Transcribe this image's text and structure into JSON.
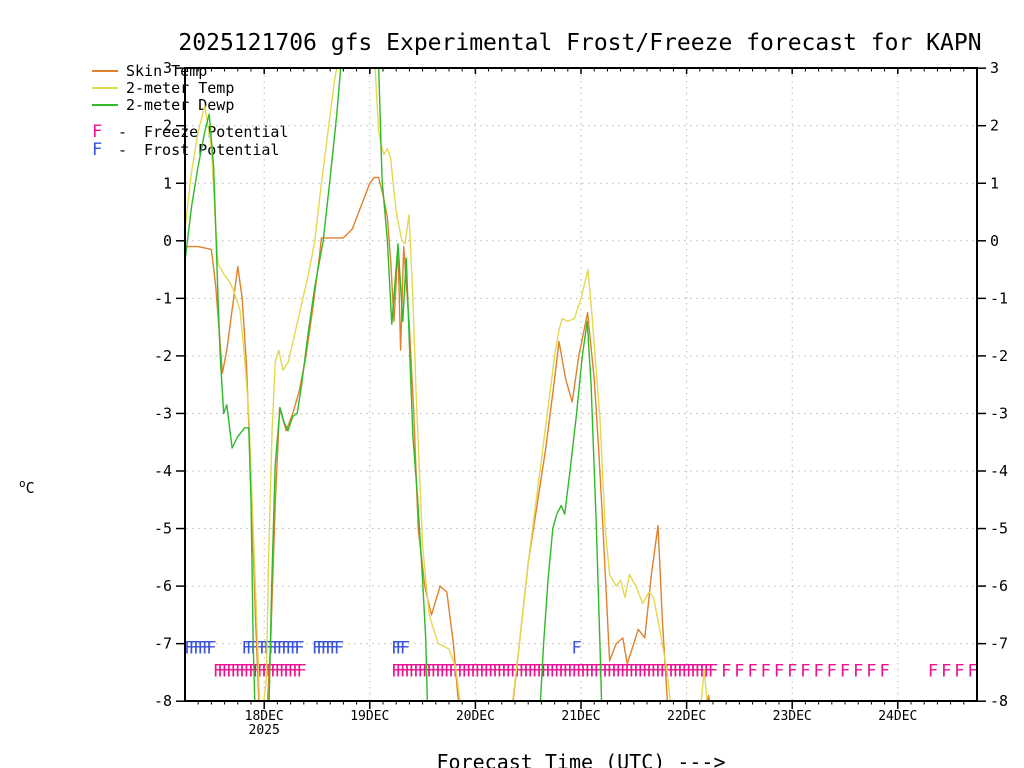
{
  "title": "2025121706 gfs Experimental Frost/Freeze forecast for KAPN",
  "axes": {
    "y": {
      "unit_sup": "o",
      "unit_main": "C"
    },
    "x": {
      "label": "Forecast Time (UTC) --->"
    }
  },
  "chart_data": {
    "type": "line",
    "title": "2025121706 gfs Experimental Frost/Freeze forecast for KAPN",
    "xlabel": "Forecast Time (UTC) --->",
    "ylabel": "°C",
    "grid": "dotted",
    "y_axis": {
      "min": -8,
      "max": 3,
      "ticks": [
        3,
        2,
        1,
        0,
        -1,
        -2,
        -3,
        -4,
        -5,
        -6,
        -7,
        -8
      ]
    },
    "x_axis": {
      "span_hours": 180,
      "minor_tick_hours": 3,
      "year_label": "2025",
      "day_ticks": [
        {
          "hour": 18,
          "label": "18DEC"
        },
        {
          "hour": 42,
          "label": "19DEC"
        },
        {
          "hour": 66,
          "label": "20DEC"
        },
        {
          "hour": 90,
          "label": "21DEC"
        },
        {
          "hour": 114,
          "label": "22DEC"
        },
        {
          "hour": 138,
          "label": "23DEC"
        },
        {
          "hour": 162,
          "label": "24DEC"
        }
      ]
    },
    "series": [
      {
        "name": "Skin Temp",
        "color": "#e0812c",
        "points": [
          [
            0,
            -0.1
          ],
          [
            3,
            -0.1
          ],
          [
            6,
            -0.15
          ],
          [
            7,
            -0.8
          ],
          [
            8.5,
            -2.3
          ],
          [
            9.5,
            -1.9
          ],
          [
            12,
            -0.45
          ],
          [
            13,
            -1.0
          ],
          [
            14,
            -2.2
          ],
          [
            15,
            -4.2
          ],
          [
            16,
            -6.5
          ],
          [
            17,
            -8.4
          ],
          [
            18.5,
            -8.4
          ],
          [
            19.5,
            -6.9
          ],
          [
            20.5,
            -4.6
          ],
          [
            21.5,
            -2.9
          ],
          [
            23,
            -3.3
          ],
          [
            24.5,
            -3.0
          ],
          [
            26,
            -2.6
          ],
          [
            27.5,
            -2.0
          ],
          [
            29,
            -1.2
          ],
          [
            30.5,
            -0.3
          ],
          [
            31,
            0.05
          ],
          [
            36,
            0.05
          ],
          [
            38,
            0.2
          ],
          [
            40,
            0.6
          ],
          [
            42,
            1.0
          ],
          [
            43,
            1.1
          ],
          [
            44,
            1.1
          ],
          [
            45,
            0.8
          ],
          [
            46,
            0.4
          ],
          [
            46.8,
            -0.4
          ],
          [
            47.5,
            -1.4
          ],
          [
            48.4,
            -0.1
          ],
          [
            49,
            -1.9
          ],
          [
            49.7,
            -0.1
          ],
          [
            51,
            -1.5
          ],
          [
            52,
            -3.0
          ],
          [
            53,
            -5.0
          ],
          [
            54.5,
            -6.0
          ],
          [
            56,
            -6.5
          ],
          [
            58,
            -6.0
          ],
          [
            59.5,
            -6.1
          ],
          [
            61,
            -7.0
          ],
          [
            62,
            -7.9
          ],
          [
            63,
            -8.4
          ],
          [
            74,
            -8.4
          ],
          [
            76,
            -7.0
          ],
          [
            78,
            -5.6
          ],
          [
            80,
            -4.6
          ],
          [
            82,
            -3.6
          ],
          [
            84,
            -2.4
          ],
          [
            85,
            -1.75
          ],
          [
            86.5,
            -2.4
          ],
          [
            88,
            -2.8
          ],
          [
            89.5,
            -2.0
          ],
          [
            91.5,
            -1.25
          ],
          [
            93,
            -2.4
          ],
          [
            94,
            -3.6
          ],
          [
            95,
            -5.0
          ],
          [
            96.5,
            -7.3
          ],
          [
            98,
            -7.0
          ],
          [
            99.5,
            -6.9
          ],
          [
            100.5,
            -7.35
          ],
          [
            102,
            -7.0
          ],
          [
            103,
            -6.75
          ],
          [
            104.5,
            -6.9
          ],
          [
            106,
            -5.8
          ],
          [
            107.5,
            -4.95
          ],
          [
            108.5,
            -6.6
          ],
          [
            109.5,
            -7.85
          ],
          [
            110,
            -8.4
          ],
          [
            118,
            -8.4
          ],
          [
            119,
            -7.9
          ],
          [
            120,
            -8.4
          ],
          [
            180,
            -8.4
          ]
        ]
      },
      {
        "name": "2-meter Temp",
        "color": "#e3d94e",
        "points": [
          [
            0,
            0.2
          ],
          [
            1.5,
            1.2
          ],
          [
            3,
            1.9
          ],
          [
            4.5,
            2.35
          ],
          [
            6,
            1.6
          ],
          [
            7,
            0.2
          ],
          [
            7.5,
            -0.4
          ],
          [
            9,
            -0.6
          ],
          [
            10,
            -0.7
          ],
          [
            11,
            -0.85
          ],
          [
            12.5,
            -1.2
          ],
          [
            13.5,
            -2.0
          ],
          [
            14.5,
            -3.0
          ],
          [
            15.5,
            -5.0
          ],
          [
            16.5,
            -7.0
          ],
          [
            17,
            -8.1
          ],
          [
            17.5,
            -8.3
          ],
          [
            18.5,
            -7.6
          ],
          [
            19,
            -5.5
          ],
          [
            19.8,
            -3.3
          ],
          [
            20.5,
            -2.1
          ],
          [
            21.3,
            -1.9
          ],
          [
            22.3,
            -2.25
          ],
          [
            23.5,
            -2.1
          ],
          [
            25,
            -1.6
          ],
          [
            26.5,
            -1.1
          ],
          [
            28,
            -0.6
          ],
          [
            29.5,
            0.0
          ],
          [
            31,
            1.0
          ],
          [
            32.5,
            1.9
          ],
          [
            34,
            2.8
          ],
          [
            35.2,
            3.3
          ],
          [
            43,
            3.3
          ],
          [
            44,
            1.9
          ],
          [
            44.5,
            1.7
          ],
          [
            45.2,
            1.5
          ],
          [
            46,
            1.6
          ],
          [
            46.7,
            1.45
          ],
          [
            48,
            0.5
          ],
          [
            49.3,
            0.0
          ],
          [
            50,
            -0.05
          ],
          [
            50.9,
            0.45
          ],
          [
            51.8,
            -1.0
          ],
          [
            52.5,
            -2.6
          ],
          [
            54,
            -5.3
          ],
          [
            55.5,
            -6.5
          ],
          [
            56.5,
            -6.75
          ],
          [
            57.5,
            -7.0
          ],
          [
            59,
            -7.05
          ],
          [
            60,
            -7.1
          ],
          [
            61.5,
            -7.4
          ],
          [
            62,
            -7.7
          ],
          [
            63,
            -8.3
          ],
          [
            74,
            -8.3
          ],
          [
            76,
            -7.0
          ],
          [
            78,
            -5.6
          ],
          [
            80,
            -4.4
          ],
          [
            82,
            -3.2
          ],
          [
            84,
            -2.0
          ],
          [
            85,
            -1.55
          ],
          [
            85.7,
            -1.35
          ],
          [
            87,
            -1.4
          ],
          [
            88.5,
            -1.35
          ],
          [
            90,
            -1.0
          ],
          [
            91.6,
            -0.5
          ],
          [
            92.5,
            -1.3
          ],
          [
            93.5,
            -2.3
          ],
          [
            94.3,
            -3.05
          ],
          [
            95.5,
            -5.0
          ],
          [
            96.5,
            -5.8
          ],
          [
            98,
            -6.0
          ],
          [
            99,
            -5.9
          ],
          [
            100,
            -6.2
          ],
          [
            101,
            -5.8
          ],
          [
            102.5,
            -6.0
          ],
          [
            104,
            -6.3
          ],
          [
            105.5,
            -6.1
          ],
          [
            106.5,
            -6.2
          ],
          [
            108,
            -6.8
          ],
          [
            109.5,
            -7.45
          ],
          [
            110.7,
            -8.3
          ],
          [
            117,
            -8.3
          ],
          [
            118,
            -7.45
          ],
          [
            119,
            -8.3
          ],
          [
            180,
            -8.3
          ]
        ]
      },
      {
        "name": "2-meter Dewp",
        "color": "#2fba28",
        "points": [
          [
            0,
            -0.35
          ],
          [
            1.5,
            0.6
          ],
          [
            3,
            1.3
          ],
          [
            4.5,
            1.9
          ],
          [
            5.5,
            2.2
          ],
          [
            6.5,
            1.3
          ],
          [
            7,
            0.2
          ],
          [
            7.5,
            -1.0
          ],
          [
            8,
            -2.0
          ],
          [
            8.8,
            -3.0
          ],
          [
            9.5,
            -2.85
          ],
          [
            10.7,
            -3.6
          ],
          [
            12,
            -3.4
          ],
          [
            13.6,
            -3.25
          ],
          [
            14.5,
            -3.25
          ],
          [
            15,
            -4.5
          ],
          [
            15.5,
            -7.0
          ],
          [
            16,
            -8.4
          ],
          [
            19,
            -8.4
          ],
          [
            19.7,
            -6.0
          ],
          [
            20.5,
            -3.9
          ],
          [
            21.6,
            -2.9
          ],
          [
            22.5,
            -3.15
          ],
          [
            23.4,
            -3.3
          ],
          [
            24.5,
            -3.05
          ],
          [
            25.5,
            -3.0
          ],
          [
            26.5,
            -2.5
          ],
          [
            28,
            -1.6
          ],
          [
            29.5,
            -0.8
          ],
          [
            31.4,
            0.0
          ],
          [
            33,
            1.1
          ],
          [
            34.5,
            2.2
          ],
          [
            35.7,
            3.3
          ],
          [
            43.9,
            3.3
          ],
          [
            44.8,
            1.05
          ],
          [
            46,
            0.0
          ],
          [
            47,
            -1.45
          ],
          [
            48.4,
            -0.05
          ],
          [
            49.5,
            -1.4
          ],
          [
            50.3,
            -0.3
          ],
          [
            51,
            -1.8
          ],
          [
            51.8,
            -3.4
          ],
          [
            52.8,
            -4.4
          ],
          [
            54,
            -5.9
          ],
          [
            54.7,
            -6.9
          ],
          [
            55.2,
            -8.4
          ],
          [
            80.5,
            -8.4
          ],
          [
            81.5,
            -7.0
          ],
          [
            82.5,
            -5.9
          ],
          [
            83.6,
            -5.0
          ],
          [
            84.5,
            -4.75
          ],
          [
            85.5,
            -4.6
          ],
          [
            86.3,
            -4.75
          ],
          [
            87.5,
            -4.0
          ],
          [
            89,
            -3.0
          ],
          [
            90.3,
            -2.0
          ],
          [
            91.4,
            -1.4
          ],
          [
            92.3,
            -2.5
          ],
          [
            93.5,
            -5.0
          ],
          [
            94.5,
            -7.5
          ],
          [
            94.8,
            -8.4
          ],
          [
            180,
            -8.4
          ]
        ]
      }
    ],
    "flags": [
      {
        "name": "Freeze Potential",
        "symbol": "F",
        "separator": "-",
        "color": "#ee1090",
        "row_c": -7.5,
        "groups": [
          {
            "from_h": 7.5,
            "to_h": 27,
            "step_h": 1
          },
          {
            "from_h": 48,
            "to_h": 119,
            "step_h": 1
          },
          {
            "from_h": 120,
            "to_h": 159,
            "step_h": 3
          },
          {
            "from_h": 170,
            "to_h": 179,
            "step_h": 3
          }
        ]
      },
      {
        "name": "Frost Potential",
        "symbol": "F",
        "separator": "-",
        "color": "#3a52d8",
        "row_c": -7.1,
        "groups": [
          {
            "from_h": 1,
            "to_h": 6,
            "step_h": 1
          },
          {
            "from_h": 14,
            "to_h": 26,
            "step_h": 1
          },
          {
            "from_h": 30,
            "to_h": 35.5,
            "step_h": 1
          },
          {
            "from_h": 48,
            "to_h": 50.5,
            "step_h": 1
          },
          {
            "from_h": 89,
            "to_h": 89,
            "step_h": 3
          }
        ]
      }
    ]
  }
}
